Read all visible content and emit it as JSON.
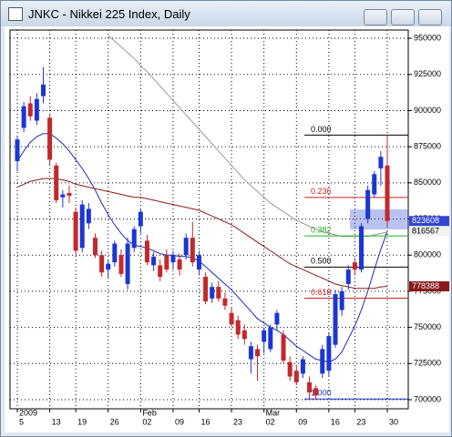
{
  "window": {
    "title": "JNKC - Nikkei 225 Index, Daily"
  },
  "chart_data": {
    "type": "candlestick",
    "categories": [
      "5",
      null,
      null,
      null,
      null,
      "13",
      null,
      null,
      null,
      "19",
      null,
      null,
      null,
      null,
      "26",
      null,
      null,
      null,
      null,
      "02",
      null,
      null,
      null,
      null,
      "09",
      null,
      null,
      null,
      "16",
      null,
      null,
      null,
      null,
      "23",
      null,
      null,
      null,
      null,
      "02",
      null,
      null,
      null,
      null,
      "09",
      null,
      null,
      null,
      null,
      "16",
      null,
      null,
      null,
      "23",
      null,
      null,
      null,
      null,
      "30"
    ],
    "month_labels": [
      "2009",
      null,
      null,
      null,
      null,
      null,
      null,
      null,
      null,
      null,
      null,
      null,
      null,
      null,
      null,
      null,
      null,
      null,
      null,
      "Feb",
      null,
      null,
      null,
      null,
      null,
      null,
      null,
      null,
      null,
      null,
      null,
      null,
      null,
      null,
      null,
      null,
      null,
      null,
      "Mar",
      null,
      null,
      null,
      null,
      null,
      null,
      null,
      null,
      null,
      null,
      null,
      null,
      null,
      null,
      null,
      null,
      null,
      null,
      null
    ],
    "open": [
      865000,
      888000,
      905000,
      893000,
      910000,
      895000,
      862000,
      840000,
      843000,
      830000,
      805000,
      822000,
      812000,
      800000,
      790000,
      795000,
      800000,
      780000,
      805000,
      820000,
      810000,
      793000,
      793000,
      800000,
      795000,
      797000,
      800000,
      812000,
      790000,
      785000,
      770000,
      778000,
      770000,
      760000,
      755000,
      748000,
      728000,
      735000,
      740000,
      735000,
      752000,
      745000,
      726000,
      720000,
      718000,
      712000,
      708000,
      718000,
      720000,
      738000,
      762000,
      780000,
      795000,
      790000,
      825000,
      842000,
      860000,
      862000
    ],
    "high": [
      882000,
      906000,
      910000,
      912000,
      930000,
      898000,
      864000,
      845000,
      848000,
      833000,
      838000,
      836000,
      815000,
      803000,
      797000,
      810000,
      804000,
      812000,
      820000,
      832000,
      814000,
      802000,
      797000,
      804000,
      803000,
      801000,
      815000,
      823000,
      803000,
      788000,
      781000,
      782000,
      774000,
      764000,
      758000,
      752000,
      740000,
      738000,
      750000,
      752000,
      762000,
      748000,
      730000,
      724000,
      730000,
      716000,
      710000,
      738000,
      746000,
      776000,
      778000,
      793000,
      798000,
      822000,
      848000,
      858000,
      872000,
      883000
    ],
    "low": [
      858000,
      885000,
      893000,
      890000,
      905000,
      862000,
      836000,
      833000,
      836000,
      800000,
      802000,
      818000,
      798000,
      785000,
      784000,
      792000,
      785000,
      776000,
      802000,
      815000,
      793000,
      789000,
      782000,
      788000,
      790000,
      786000,
      797000,
      792000,
      786000,
      766000,
      767000,
      768000,
      762000,
      750000,
      742000,
      738000,
      718000,
      713000,
      732000,
      733000,
      748000,
      725000,
      713000,
      710000,
      715000,
      700000,
      700000,
      715000,
      716000,
      736000,
      758000,
      776000,
      786000,
      788000,
      822000,
      840000,
      848000,
      820000
    ],
    "close": [
      880000,
      903000,
      896000,
      908000,
      918000,
      866000,
      838000,
      842000,
      841000,
      803000,
      835000,
      832000,
      800000,
      788000,
      794000,
      808000,
      787000,
      808000,
      818000,
      830000,
      795000,
      799000,
      785000,
      790000,
      800000,
      790000,
      812000,
      795000,
      800000,
      768000,
      778000,
      770000,
      765000,
      752000,
      745000,
      742000,
      737000,
      730000,
      748000,
      750000,
      760000,
      727000,
      716000,
      712000,
      728000,
      705000,
      703000,
      735000,
      744000,
      773000,
      775000,
      790000,
      790000,
      820000,
      845000,
      856000,
      868000,
      823608
    ],
    "up_color": "#1c36d4",
    "down_color": "#c4282a",
    "ylim": [
      693700,
      955700
    ],
    "yticks": [
      700000,
      725000,
      750000,
      775000,
      800000,
      825000,
      850000,
      875000,
      900000,
      925000,
      950000
    ],
    "grid": true,
    "moving_averages": [
      {
        "color": "#1a2ab8",
        "values": [
          865000,
          872000,
          878000,
          882000,
          884000,
          884000,
          881000,
          877000,
          872000,
          866000,
          860000,
          853000,
          845000,
          836000,
          828000,
          821000,
          815000,
          810000,
          807000,
          806000,
          805000,
          803000,
          801000,
          800000,
          800000,
          799000,
          799000,
          798000,
          796000,
          792000,
          788000,
          784000,
          780000,
          776000,
          771000,
          766000,
          761000,
          756000,
          753000,
          750000,
          748000,
          745000,
          741000,
          737000,
          734000,
          731000,
          728000,
          727000,
          726000,
          728000,
          733000,
          742000,
          751000,
          762000,
          775000,
          790000,
          804000,
          816567
        ]
      },
      {
        "color": "#8b1a1a",
        "values": [
          847000,
          849000,
          851000,
          852000,
          853000,
          853000,
          853000,
          852000,
          851000,
          849000,
          848000,
          847000,
          846000,
          845000,
          844000,
          843000,
          842000,
          841000,
          840000,
          840000,
          839000,
          838000,
          837000,
          836000,
          835000,
          834000,
          833000,
          832000,
          831000,
          829000,
          827000,
          825000,
          823000,
          821000,
          818000,
          815000,
          812000,
          809000,
          806000,
          803000,
          800000,
          797000,
          794000,
          792000,
          790000,
          788000,
          786000,
          784000,
          782000,
          780000,
          779000,
          778000,
          777000,
          777000,
          777000,
          777000,
          778000,
          778388
        ]
      },
      {
        "color": "#999999",
        "values": [
          null,
          null,
          null,
          null,
          null,
          null,
          null,
          null,
          null,
          null,
          null,
          null,
          null,
          null,
          952000,
          948000,
          944000,
          940000,
          936000,
          931000,
          927000,
          922000,
          917000,
          912000,
          907000,
          902000,
          897000,
          892000,
          887000,
          882000,
          877000,
          872000,
          867000,
          862000,
          857000,
          852000,
          848000,
          844000,
          840000,
          836000,
          833000,
          830000,
          827000,
          824000,
          822000,
          820000,
          818000,
          816000,
          815000,
          814000,
          813000,
          813000,
          813000,
          813000,
          813000,
          814000,
          815000,
          816000
        ]
      }
    ],
    "fibonacci": [
      {
        "label": "0.000",
        "value": 883000,
        "color": "#000000"
      },
      {
        "label": "0.236",
        "value": 839900,
        "color": "#d02020"
      },
      {
        "label": "0.382",
        "value": 813300,
        "color": "#20b020"
      },
      {
        "label": "0.500",
        "value": 791750,
        "color": "#000000"
      },
      {
        "label": "0.618",
        "value": 770200,
        "color": "#d02020"
      },
      {
        "label": "1.000",
        "value": 700500,
        "color": "#2030d0"
      }
    ]
  }
}
